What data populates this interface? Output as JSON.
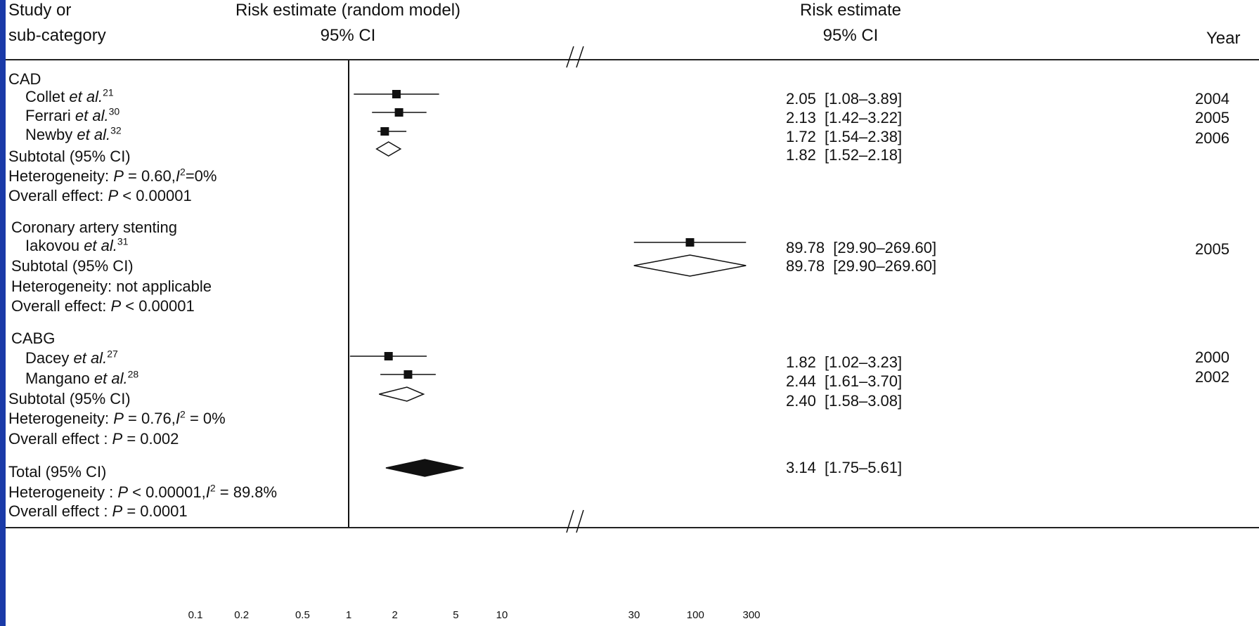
{
  "chart_data": {
    "type": "forest",
    "x_scale": "log",
    "x_axis_break": [
      10,
      30
    ],
    "null_line": 1,
    "x_ticks": [
      "0.1",
      "0.2",
      "0.5",
      "1",
      "2",
      "5",
      "10",
      "30",
      "100",
      "300"
    ],
    "headers": {
      "study_line1": "Study or",
      "study_line2": "sub-category",
      "plot_line1": "Risk estimate (random model)",
      "plot_line2": "95% CI",
      "est_line1": "Risk estimate",
      "est_line2": "95% CI",
      "year": "Year"
    },
    "groups": [
      {
        "name": "CAD",
        "studies": [
          {
            "author": "Collet",
            "etal": "et al.",
            "ref": "21",
            "est": 2.05,
            "lo": 1.08,
            "hi": 3.89,
            "label": "2.05  [1.08–3.89]",
            "year": "2004"
          },
          {
            "author": "Ferrari",
            "etal": "et al.",
            "ref": "30",
            "est": 2.13,
            "lo": 1.42,
            "hi": 3.22,
            "label": "2.13  [1.42–3.22]",
            "year": "2005"
          },
          {
            "author": "Newby",
            "etal": "et al.",
            "ref": "32",
            "est": 1.72,
            "lo": 1.54,
            "hi": 2.38,
            "label": "1.72  [1.54–2.38]",
            "year": "2006"
          }
        ],
        "subtotal": {
          "text": "Subtotal (95% CI)",
          "est": 1.82,
          "lo": 1.52,
          "hi": 2.18,
          "label": "1.82  [1.52–2.18]"
        },
        "heterogeneity": {
          "prefix": "Heterogeneity: ",
          "p": "P",
          "pval": " = 0.60,",
          "i": "I",
          "i2": "2",
          "ival": "=0%"
        },
        "overall": {
          "prefix": "Overall effect: ",
          "p": "P",
          "pval": " < 0.00001"
        }
      },
      {
        "name": "Coronary artery stenting",
        "studies": [
          {
            "author": "Iakovou",
            "etal": "et al.",
            "ref": "31",
            "est": 89.78,
            "lo": 29.9,
            "hi": 269.6,
            "label": "89.78  [29.90–269.60]",
            "year": "2005"
          }
        ],
        "subtotal": {
          "text": "Subtotal (95% CI)",
          "est": 89.78,
          "lo": 29.9,
          "hi": 269.6,
          "label": "89.78  [29.90–269.60]"
        },
        "heterogeneity": {
          "prefix": "Heterogeneity: not applicable"
        },
        "overall": {
          "prefix": "Overall effect: ",
          "p": "P",
          "pval": " < 0.00001"
        }
      },
      {
        "name": "CABG",
        "studies": [
          {
            "author": "Dacey",
            "etal": "et al.",
            "ref": "27",
            "est": 1.82,
            "lo": 1.02,
            "hi": 3.23,
            "label": "1.82  [1.02–3.23]",
            "year": "2000"
          },
          {
            "author": "Mangano",
            "etal": "et al.",
            "ref": "28",
            "est": 2.44,
            "lo": 1.61,
            "hi": 3.7,
            "label": "2.44  [1.61–3.70]",
            "year": "2002"
          }
        ],
        "subtotal": {
          "text": "Subtotal (95% CI)",
          "est": 2.4,
          "lo": 1.58,
          "hi": 3.08,
          "label": "2.40  [1.58–3.08]"
        },
        "heterogeneity": {
          "prefix": "Heterogeneity: ",
          "p": "P",
          "pval": " = 0.76,",
          "i": "I",
          "i2": "2",
          "ival": " = 0%"
        },
        "overall": {
          "prefix": "Overall effect : ",
          "p": "P",
          "pval": " = 0.002"
        }
      }
    ],
    "total": {
      "text": "Total (95% CI)",
      "est": 3.14,
      "lo": 1.75,
      "hi": 5.61,
      "label": "3.14  [1.75–5.61]",
      "heterogeneity": {
        "prefix": "Heterogeneity : ",
        "p": "P",
        "pval": " < 0.00001,",
        "i": "I",
        "i2": "2",
        "ival": " = 89.8%"
      },
      "overall": {
        "prefix": "Overall effect : ",
        "p": "P",
        "pval": " = 0.0001"
      }
    }
  },
  "colors": {
    "background": "#0b1f6e",
    "panel": "#ffffff",
    "ink": "#111111"
  }
}
